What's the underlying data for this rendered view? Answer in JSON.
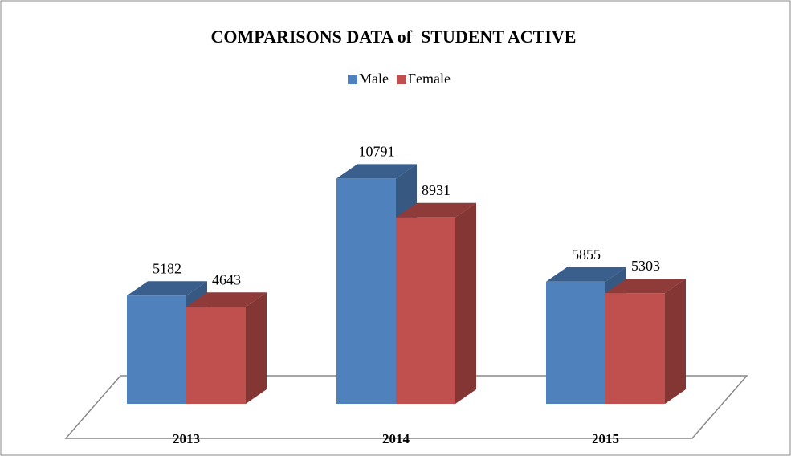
{
  "chart_data": {
    "type": "bar3d",
    "title": "COMPARISONS DATA of  STUDENT ACTIVE",
    "categories": [
      "2013",
      "2014",
      "2015"
    ],
    "series": [
      {
        "name": "Male",
        "color": "#4f81bd",
        "values": [
          5182,
          10791,
          5855
        ]
      },
      {
        "name": "Female",
        "color": "#c0504d",
        "values": [
          4643,
          8931,
          5303
        ]
      }
    ],
    "legend": "top"
  }
}
